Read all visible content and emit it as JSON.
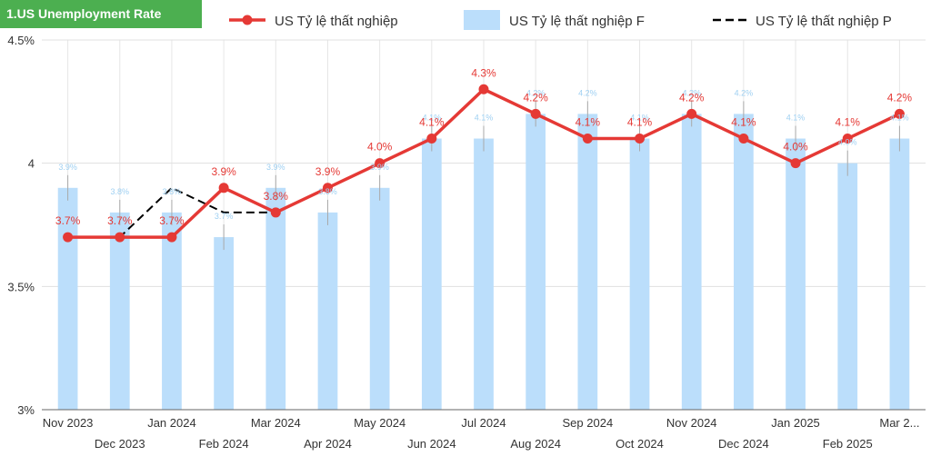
{
  "title": "1.US Unemployment Rate",
  "colors": {
    "line": "#e53935",
    "bar": "#bbdefb",
    "forecast": "#000000",
    "badge": "#4caf50"
  },
  "chart_data": {
    "type": "bar",
    "title": "1.US Unemployment Rate",
    "categories": [
      "Nov 2023",
      "Dec 2023",
      "Jan 2024",
      "Feb 2024",
      "Mar 2024",
      "Apr 2024",
      "May 2024",
      "Jun 2024",
      "Jul 2024",
      "Aug 2024",
      "Sep 2024",
      "Oct 2024",
      "Nov 2024",
      "Dec 2024",
      "Jan 2025",
      "Feb 2025",
      "Mar 2..."
    ],
    "series": [
      {
        "name": "US Tỷ lệ thất nghiệp",
        "kind": "line",
        "values": [
          3.7,
          3.7,
          3.7,
          3.9,
          3.8,
          3.9,
          4.0,
          4.1,
          4.3,
          4.2,
          4.1,
          4.1,
          4.2,
          4.1,
          4.0,
          4.1,
          4.2
        ],
        "labels": [
          "3.7%",
          "3.7%",
          "3.7%",
          "3.9%",
          "3.8%",
          "3.9%",
          "4.0%",
          "4.1%",
          "4.3%",
          "4.2%",
          "4.1%",
          "4.1%",
          "4.2%",
          "4.1%",
          "4.0%",
          "4.1%",
          "4.2%"
        ]
      },
      {
        "name": "US Tỷ lệ thất nghiệp F",
        "kind": "bar",
        "values": [
          3.9,
          3.8,
          3.8,
          3.7,
          3.9,
          3.8,
          3.9,
          4.1,
          4.1,
          4.2,
          4.2,
          4.1,
          4.2,
          4.2,
          4.1,
          4.0,
          4.1
        ],
        "labels": [
          "3.9%",
          "3.8%",
          "3.8%",
          "3.7%",
          "3.9%",
          "3.8%",
          "3.9%",
          "4.1%",
          "4.1%",
          "4.2%",
          "4.2%",
          "4.1%",
          "4.2%",
          "4.2%",
          "4.1%",
          "4.0%",
          "4.1%"
        ]
      },
      {
        "name": "US Tỷ lệ thất nghiệp P",
        "kind": "dashed-line",
        "values": [
          3.7,
          3.7,
          3.9,
          3.8,
          3.8,
          3.9,
          4.0,
          4.1,
          4.3,
          4.2,
          4.1,
          4.1,
          4.2,
          4.1,
          4.0,
          4.1,
          4.2
        ]
      }
    ],
    "yticks": [
      "3%",
      "3.5%",
      "4",
      "4.5%"
    ],
    "yticks_values": [
      3.0,
      3.5,
      4.0,
      4.5
    ],
    "ylim": [
      3.0,
      4.5
    ],
    "grid": true,
    "legend": "top"
  }
}
